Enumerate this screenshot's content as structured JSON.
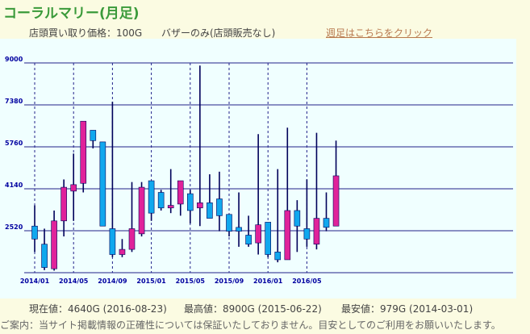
{
  "title": "コーラルマリー(月足)",
  "shop_price": "店頭買い取り価格：100G",
  "bazaar_only": "バザーのみ(店頭販売なし)",
  "weekly_link": "週足はこちらをクリック",
  "stats": {
    "current": "現在値：4640G (2016-08-23)",
    "high": "最高値：8900G (2015-06-22)",
    "low": "最安値：979G (2014-03-01)"
  },
  "notice": "ご案内：当サイト掲載情報の正確性については保証いたしておりません。目安としてのご利用をお願いいたします。",
  "colors": {
    "up": "#e0229a",
    "down": "#10a8ee",
    "wick": "#00005a",
    "grid": "#22228a",
    "background": "#f0ffff",
    "tick_label": "#0000a0"
  },
  "chart_data": {
    "type": "candlestick",
    "title": "",
    "xlabel": "",
    "ylabel": "",
    "ylim": [
      900,
      9000
    ],
    "yticks": [
      2520,
      4140,
      5760,
      7380,
      9000
    ],
    "xtick_labels": [
      {
        "label": "2014/01",
        "period": "2014-01"
      },
      {
        "label": "2014/05",
        "period": "2014-05"
      },
      {
        "label": "2014/09",
        "period": "2014-09"
      },
      {
        "label": "2015/01",
        "period": "2015-01"
      },
      {
        "label": "2015/05",
        "period": "2015-05"
      },
      {
        "label": "2015/09",
        "period": "2015-09"
      },
      {
        "label": "2016/01",
        "period": "2016-01"
      },
      {
        "label": "2016/05",
        "period": "2016-05"
      }
    ],
    "series": [
      {
        "period": "2014-01",
        "open": 2700,
        "close": 2200,
        "high": 3500,
        "low": 1700
      },
      {
        "period": "2014-02",
        "open": 2000,
        "close": 1100,
        "high": 2600,
        "low": 1000
      },
      {
        "period": "2014-03",
        "open": 1050,
        "close": 2900,
        "high": 3300,
        "low": 979
      },
      {
        "period": "2014-04",
        "open": 2900,
        "close": 4200,
        "high": 4500,
        "low": 2300
      },
      {
        "period": "2014-05",
        "open": 4050,
        "close": 4300,
        "high": 5500,
        "low": 2900
      },
      {
        "period": "2014-06",
        "open": 4350,
        "close": 6750,
        "high": 6750,
        "low": 4000
      },
      {
        "period": "2014-07",
        "open": 6400,
        "close": 6000,
        "high": 6400,
        "low": 5700
      },
      {
        "period": "2014-08",
        "open": 5950,
        "close": 2700,
        "high": 5950,
        "low": 2700
      },
      {
        "period": "2014-09",
        "open": 2600,
        "close": 1600,
        "high": 7500,
        "low": 1500
      },
      {
        "period": "2014-10",
        "open": 1600,
        "close": 1800,
        "high": 2200,
        "low": 1500
      },
      {
        "period": "2014-11",
        "open": 1800,
        "close": 2600,
        "high": 4400,
        "low": 1700
      },
      {
        "period": "2014-12",
        "open": 2400,
        "close": 4200,
        "high": 4400,
        "low": 2300
      },
      {
        "period": "2015-01",
        "open": 4450,
        "close": 3200,
        "high": 4450,
        "low": 2900
      },
      {
        "period": "2015-02",
        "open": 4000,
        "close": 3400,
        "high": 4100,
        "low": 3300
      },
      {
        "period": "2015-03",
        "open": 3400,
        "close": 3500,
        "high": 4900,
        "low": 3200
      },
      {
        "period": "2015-04",
        "open": 3550,
        "close": 4450,
        "high": 4450,
        "low": 3100
      },
      {
        "period": "2015-05",
        "open": 3950,
        "close": 3300,
        "high": 4100,
        "low": 2800
      },
      {
        "period": "2015-06",
        "open": 3400,
        "close": 3600,
        "high": 8900,
        "low": 2700
      },
      {
        "period": "2015-07",
        "open": 3600,
        "close": 3000,
        "high": 4700,
        "low": 3000
      },
      {
        "period": "2015-08",
        "open": 3750,
        "close": 3100,
        "high": 4800,
        "low": 2500
      },
      {
        "period": "2015-09",
        "open": 3150,
        "close": 2500,
        "high": 3150,
        "low": 2300
      },
      {
        "period": "2015-10",
        "open": 2650,
        "close": 2500,
        "high": 4000,
        "low": 1900
      },
      {
        "period": "2015-11",
        "open": 2350,
        "close": 2000,
        "high": 3100,
        "low": 1900
      },
      {
        "period": "2015-12",
        "open": 2050,
        "close": 2750,
        "high": 6250,
        "low": 1600
      },
      {
        "period": "2016-01",
        "open": 2850,
        "close": 1600,
        "high": 2850,
        "low": 1500
      },
      {
        "period": "2016-02",
        "open": 1700,
        "close": 1400,
        "high": 4900,
        "low": 1300
      },
      {
        "period": "2016-03",
        "open": 1400,
        "close": 3300,
        "high": 6500,
        "low": 1400
      },
      {
        "period": "2016-04",
        "open": 3300,
        "close": 2700,
        "high": 3700,
        "low": 1700
      },
      {
        "period": "2016-05",
        "open": 2600,
        "close": 2200,
        "high": 4500,
        "low": 1900
      },
      {
        "period": "2016-06",
        "open": 2000,
        "close": 3000,
        "high": 6300,
        "low": 1800
      },
      {
        "period": "2016-07",
        "open": 3000,
        "close": 2650,
        "high": 4000,
        "low": 2500
      },
      {
        "period": "2016-08",
        "open": 2700,
        "close": 4640,
        "high": 6000,
        "low": 2700
      }
    ]
  }
}
